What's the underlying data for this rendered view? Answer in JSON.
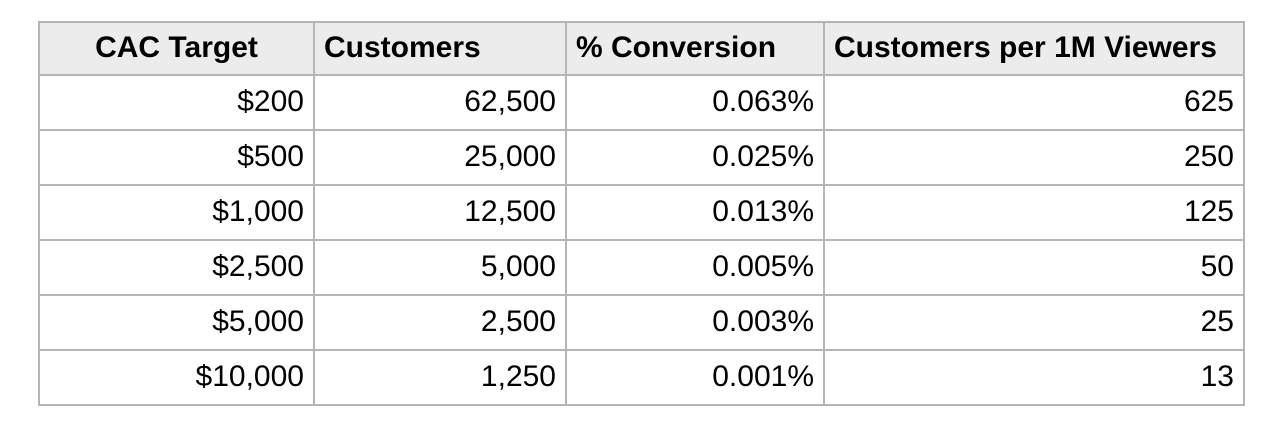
{
  "colors": {
    "page_background": "#ffffff",
    "header_background": "#ececec",
    "border": "#b5b5b5",
    "text": "#000000"
  },
  "chart_data": {
    "type": "table",
    "title": "",
    "columns": [
      "CAC Target",
      "Customers",
      "% Conversion",
      "Customers per 1M Viewers"
    ],
    "column_alignments": [
      "center",
      "left",
      "left",
      "left"
    ],
    "cell_alignment": "right",
    "rows": [
      [
        "$200",
        "62,500",
        "0.063%",
        "625"
      ],
      [
        "$500",
        "25,000",
        "0.025%",
        "250"
      ],
      [
        "$1,000",
        "12,500",
        "0.013%",
        "125"
      ],
      [
        "$2,500",
        "5,000",
        "0.005%",
        "50"
      ],
      [
        "$5,000",
        "2,500",
        "0.003%",
        "25"
      ],
      [
        "$10,000",
        "1,250",
        "0.001%",
        "13"
      ]
    ],
    "numeric_rows": [
      {
        "cac_target_usd": 200,
        "customers": 62500,
        "conversion_pct": 0.063,
        "customers_per_1m_viewers": 625
      },
      {
        "cac_target_usd": 500,
        "customers": 25000,
        "conversion_pct": 0.025,
        "customers_per_1m_viewers": 250
      },
      {
        "cac_target_usd": 1000,
        "customers": 12500,
        "conversion_pct": 0.013,
        "customers_per_1m_viewers": 125
      },
      {
        "cac_target_usd": 2500,
        "customers": 5000,
        "conversion_pct": 0.005,
        "customers_per_1m_viewers": 50
      },
      {
        "cac_target_usd": 5000,
        "customers": 2500,
        "conversion_pct": 0.003,
        "customers_per_1m_viewers": 25
      },
      {
        "cac_target_usd": 10000,
        "customers": 1250,
        "conversion_pct": 0.001,
        "customers_per_1m_viewers": 13
      }
    ]
  }
}
